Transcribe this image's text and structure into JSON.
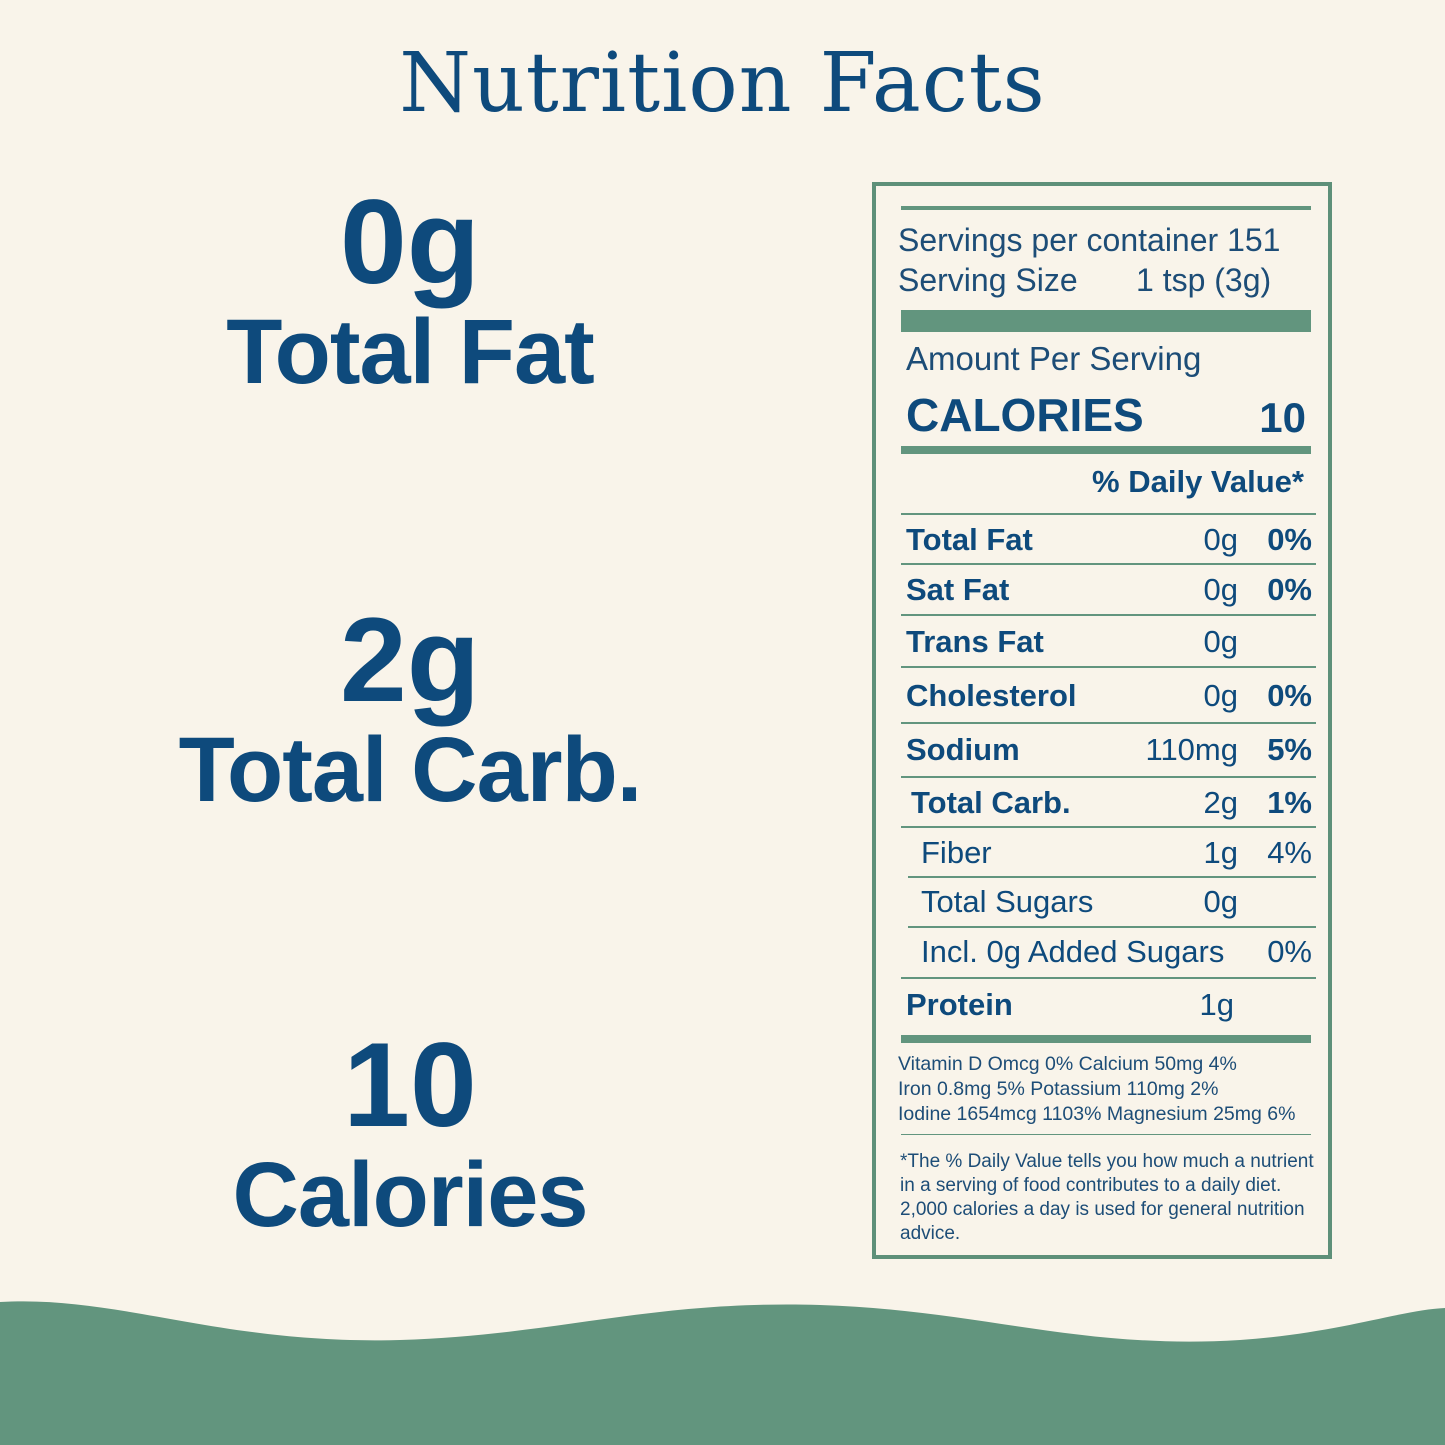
{
  "title": "Nutrition Facts",
  "highlights": [
    {
      "value": "0g",
      "label": "Total Fat"
    },
    {
      "value": "2g",
      "label": "Total Carb."
    },
    {
      "value": "10",
      "label": "Calories"
    }
  ],
  "label": {
    "servings_per_container": "Servings per container 151",
    "serving_size_label": "Serving Size",
    "serving_size_value": "1 tsp (3g)",
    "amount_per_serving": "Amount Per Serving",
    "calories_label": "CALORIES",
    "calories_value": "10",
    "daily_value_header": "% Daily Value*",
    "nutrients": [
      {
        "name": "Total Fat",
        "amount": "0g",
        "dv": "0%"
      },
      {
        "name": "Sat Fat",
        "amount": "0g",
        "dv": "0%"
      },
      {
        "name": "Trans Fat",
        "amount": "0g",
        "dv": ""
      },
      {
        "name": "Cholesterol",
        "amount": "0g",
        "dv": "0%"
      },
      {
        "name": "Sodium",
        "amount": "110mg",
        "dv": "5%"
      },
      {
        "name": "Total Carb.",
        "amount": "2g",
        "dv": "1%"
      },
      {
        "name": "Fiber",
        "amount": "1g",
        "dv": "4%"
      },
      {
        "name": "Total Sugars",
        "amount": "0g",
        "dv": ""
      },
      {
        "name": "Incl. 0g Added Sugars",
        "amount": "",
        "dv": "0%"
      },
      {
        "name": "Protein",
        "amount": "1g",
        "dv": ""
      }
    ],
    "vitamins": [
      "Vitamin D Omcg 0%    Calcium 50mg 4%",
      "Iron 0.8mg 5%     Potassium 110mg 2%",
      "Iodine 1654mcg 1103%   Magnesium 25mg 6%"
    ],
    "footnote": "*The % Daily Value tells you how much a nutrient in a serving of food contributes to a daily diet. 2,000 calories a day is used for general nutrition advice."
  },
  "colors": {
    "text": "#0e4a7c",
    "accent": "#62957e",
    "background": "#f9f4ea"
  }
}
